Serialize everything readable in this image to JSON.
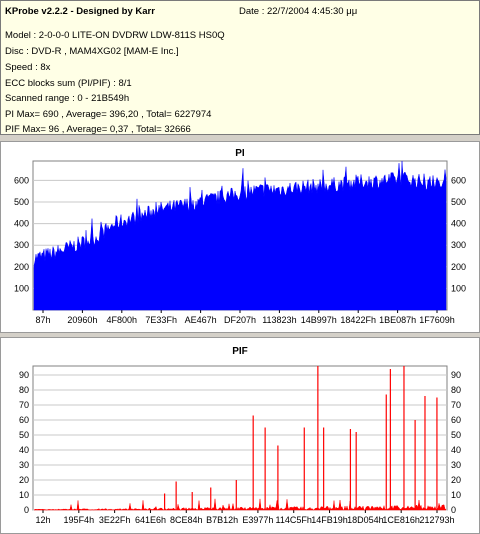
{
  "info": {
    "title": "KProbe v2.2.2 - Designed by Karr",
    "date": "Date : 22/7/2004 4:45:30 μμ",
    "model": "Model : 2-0-0-0 LITE-ON DVDRW LDW-811S   HS0Q",
    "disc": "Disc : DVD-R , MAM4XG02 [MAM-E Inc.]",
    "speed": "Speed : 8x",
    "ecc": "ECC blocks sum (PI/PIF) : 8/1",
    "range": "Scanned range : 0 - 21B549h",
    "pi_stats": "PI Max= 690 , Average= 396,20 , Total= 6227974",
    "pif_stats": "PIF Max= 96 , Average= 0,37 , Total= 32666"
  },
  "chart_data": [
    {
      "type": "area",
      "title": "PI",
      "color": "#0000ff",
      "ylim": [
        0,
        690
      ],
      "yticks": [
        100,
        200,
        300,
        400,
        500,
        600
      ],
      "xticks": [
        "87h",
        "20960h",
        "4F800h",
        "7E33Fh",
        "AE467h",
        "DF207h",
        "113823h",
        "14B997h",
        "18422Fh",
        "1BE087h",
        "1F7609h"
      ],
      "profile_x": [
        0,
        0.05,
        0.1,
        0.15,
        0.2,
        0.25,
        0.3,
        0.35,
        0.4,
        0.45,
        0.5,
        0.55,
        0.6,
        0.65,
        0.7,
        0.75,
        0.8,
        0.85,
        0.9,
        0.95,
        1.0
      ],
      "profile_y": [
        240,
        265,
        300,
        335,
        405,
        430,
        465,
        480,
        500,
        520,
        540,
        555,
        560,
        570,
        575,
        585,
        595,
        600,
        610,
        590,
        580
      ],
      "max": 690
    },
    {
      "type": "bar",
      "title": "PIF",
      "color": "#ff0000",
      "ylim": [
        0,
        96
      ],
      "yticks": [
        0,
        10,
        20,
        30,
        40,
        50,
        60,
        70,
        80,
        90
      ],
      "xticks": [
        "12h",
        "195F4h",
        "3E22Fh",
        "641E6h",
        "8CE84h",
        "B7B12h",
        "E3977h",
        "114C5Fh",
        "14FB19h",
        "18D054h",
        "1CE816h",
        "212793h"
      ],
      "spikes_x": [
        0.317,
        0.345,
        0.384,
        0.429,
        0.491,
        0.532,
        0.561,
        0.592,
        0.656,
        0.689,
        0.703,
        0.768,
        0.782,
        0.855,
        0.865,
        0.898,
        0.925,
        0.949,
        0.978
      ],
      "spikes_y": [
        11,
        19,
        12,
        15,
        20,
        63,
        55,
        43,
        55,
        96,
        55,
        54,
        52,
        77,
        94,
        96,
        60,
        76,
        75
      ]
    }
  ]
}
